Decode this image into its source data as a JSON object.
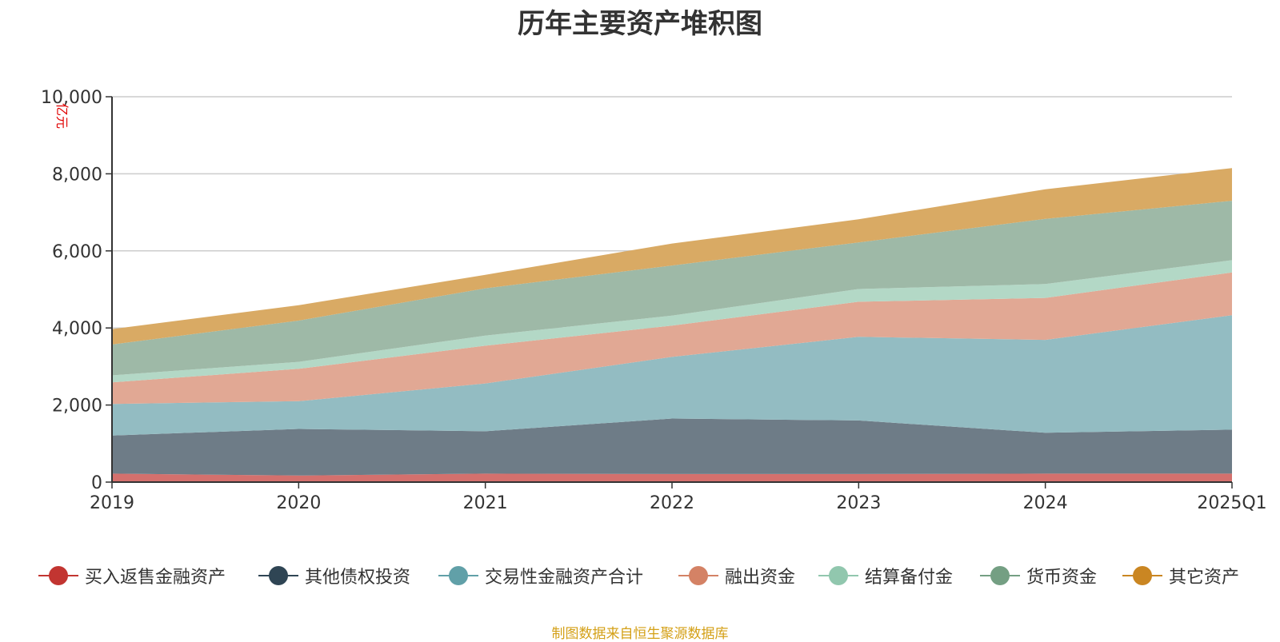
{
  "title": "历年主要资产堆积图",
  "source": "制图数据来自恒生聚源数据库",
  "chart_data": {
    "type": "area",
    "stacked": true,
    "categories": [
      "2019",
      "2020",
      "2021",
      "2022",
      "2023",
      "2024",
      "2025Q1"
    ],
    "ylabel": "亿元",
    "ylim": [
      0,
      10000
    ],
    "yticks": [
      0,
      2000,
      4000,
      6000,
      8000,
      10000
    ],
    "ytick_labels": [
      "0",
      "2,000",
      "4,000",
      "6,000",
      "8,000",
      "10,000"
    ],
    "grid": true,
    "legend_position": "bottom",
    "series": [
      {
        "name": "买入返售金融资产",
        "color": "#c23531",
        "area_color": "#d4706d",
        "values": [
          220,
          170,
          220,
          210,
          210,
          220,
          220
        ]
      },
      {
        "name": "其他债权投资",
        "color": "#2f4554",
        "area_color": "#6e7c87",
        "values": [
          990,
          1210,
          1100,
          1440,
          1390,
          1060,
          1140
        ]
      },
      {
        "name": "交易性金融资产合计",
        "color": "#61a0a8",
        "area_color": "#93bcc2",
        "values": [
          820,
          720,
          1240,
          1600,
          2170,
          2410,
          2970
        ]
      },
      {
        "name": "融出资金",
        "color": "#d48265",
        "area_color": "#e1a894",
        "values": [
          560,
          840,
          980,
          810,
          910,
          1090,
          1110
        ]
      },
      {
        "name": "结算备付金",
        "color": "#91c7ae",
        "area_color": "#b3d8c6",
        "values": [
          180,
          180,
          260,
          260,
          330,
          360,
          320
        ]
      },
      {
        "name": "货币资金",
        "color": "#749f83",
        "area_color": "#9eb9a7",
        "values": [
          800,
          1070,
          1230,
          1300,
          1210,
          1690,
          1540
        ]
      },
      {
        "name": "其它资产",
        "color": "#ca8622",
        "area_color": "#d9aa64",
        "values": [
          400,
          400,
          350,
          570,
          600,
          770,
          850
        ]
      }
    ]
  }
}
